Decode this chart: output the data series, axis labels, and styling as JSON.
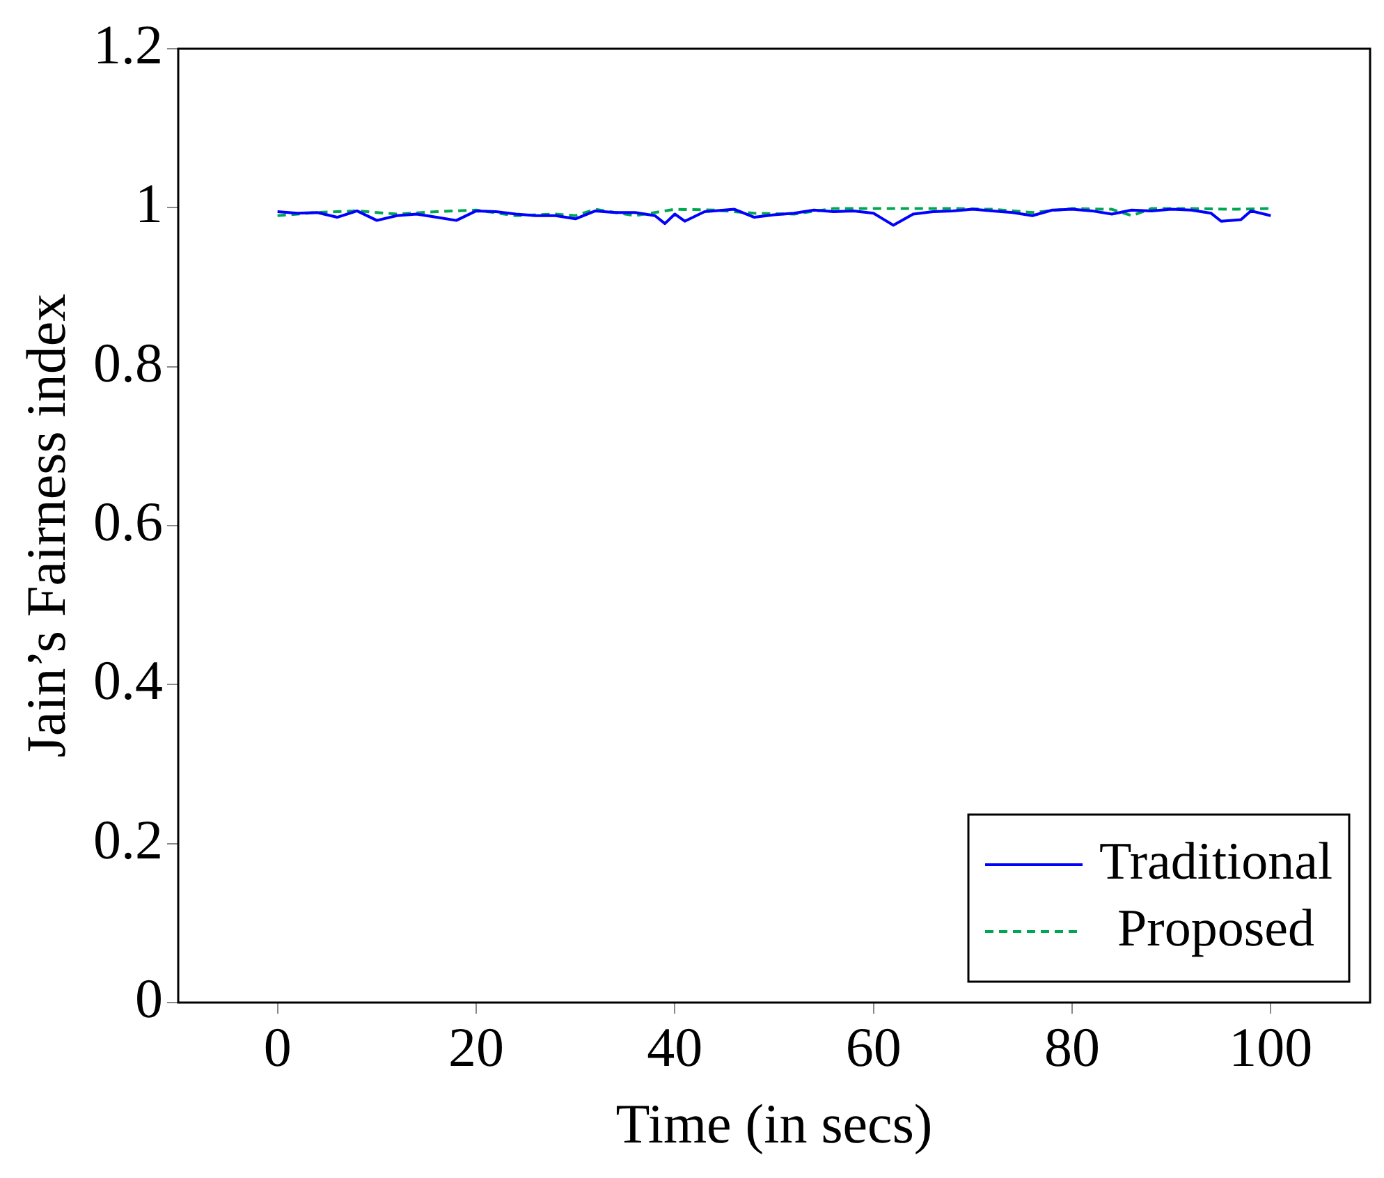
{
  "chart_data": {
    "type": "line",
    "xlabel": "Time (in secs)",
    "ylabel": "Jain’s Fairness index",
    "xlim": [
      -10,
      110
    ],
    "xticks": [
      0,
      20,
      40,
      60,
      80,
      100
    ],
    "ylim": [
      0,
      1.2
    ],
    "yticks": [
      0,
      0.2,
      0.4,
      0.6,
      0.8,
      1,
      1.2
    ],
    "legend": "bottom right",
    "marker": "none",
    "series": [
      {
        "name": "Traditional",
        "color": "#0000ff",
        "line_style": "solid",
        "x": [
          0,
          2,
          4,
          6,
          8,
          10,
          12,
          14,
          16,
          18,
          20,
          22,
          24,
          26,
          28,
          30,
          32,
          34,
          36,
          38,
          39,
          40,
          41,
          43,
          46,
          48,
          50,
          52,
          54,
          56,
          58,
          60,
          62,
          64,
          66,
          68,
          70,
          72,
          74,
          76,
          78,
          80,
          82,
          84,
          86,
          88,
          90,
          92,
          94,
          95,
          97,
          98,
          100
        ],
        "values": [
          0.995,
          0.993,
          0.994,
          0.988,
          0.996,
          0.984,
          0.99,
          0.992,
          0.988,
          0.984,
          0.996,
          0.995,
          0.992,
          0.99,
          0.99,
          0.986,
          0.996,
          0.994,
          0.994,
          0.99,
          0.98,
          0.992,
          0.983,
          0.995,
          0.998,
          0.988,
          0.991,
          0.993,
          0.997,
          0.995,
          0.996,
          0.993,
          0.978,
          0.992,
          0.995,
          0.996,
          0.998,
          0.996,
          0.994,
          0.99,
          0.997,
          0.998,
          0.996,
          0.992,
          0.997,
          0.996,
          0.998,
          0.997,
          0.993,
          0.983,
          0.985,
          0.996,
          0.99
        ]
      },
      {
        "name": "Proposed",
        "color": "#00a651",
        "line_style": "dashed",
        "x": [
          0,
          4,
          8,
          12,
          16,
          20,
          24,
          28,
          30,
          32,
          36,
          40,
          44,
          48,
          52,
          56,
          60,
          64,
          68,
          72,
          76,
          80,
          84,
          86,
          88,
          92,
          96,
          100
        ],
        "values": [
          0.99,
          0.994,
          0.996,
          0.992,
          0.995,
          0.997,
          0.99,
          0.992,
          0.99,
          0.998,
          0.99,
          0.998,
          0.997,
          0.993,
          0.992,
          0.999,
          0.999,
          0.999,
          0.999,
          0.998,
          0.994,
          0.999,
          0.998,
          0.99,
          0.999,
          0.999,
          0.998,
          0.999
        ]
      }
    ]
  }
}
